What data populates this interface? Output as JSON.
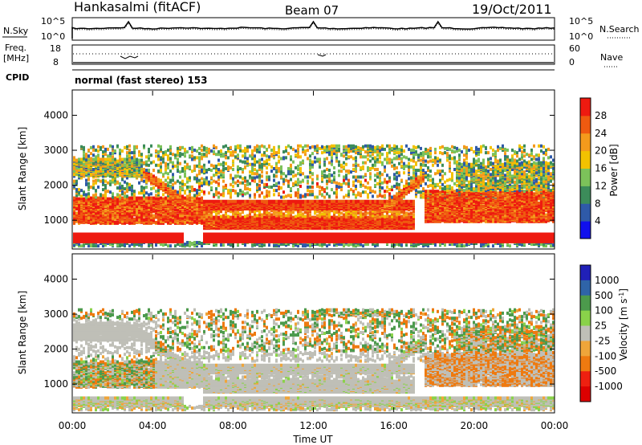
{
  "header": {
    "station": "Hankasalmi (fitACF)",
    "beam": "Beam 07",
    "date": "19/Oct/2011"
  },
  "noise_panel": {
    "left_label": "N.Sky",
    "right_label": "N.Search",
    "ticks": [
      "10^5",
      "10^0"
    ],
    "right_ticks": [
      "10^5",
      "10^0"
    ]
  },
  "freq_panel": {
    "left_label_1": "Freq.",
    "left_label_2": "[MHz]",
    "ticks": [
      "18",
      "8"
    ],
    "right_label": "Nave",
    "right_ticks": [
      "60",
      "0"
    ]
  },
  "cpid": {
    "label": "CPID",
    "value": "normal (fast stereo) 153"
  },
  "colors": {
    "power_scale": [
      "#1010ee",
      "#2f5aa8",
      "#3c8c5a",
      "#7cc25a",
      "#f2c200",
      "#f49a1c",
      "#ef5a10",
      "#ee1a10"
    ],
    "velocity_scale": [
      "#2020b8",
      "#2f64a8",
      "#4c9a4c",
      "#8ad24a",
      "#bfbfb7",
      "#efa53a",
      "#ee7a10",
      "#ee2010",
      "#dd0000"
    ]
  },
  "chart_data": [
    {
      "type": "heatmap",
      "panel": "power",
      "ylabel": "Slant Range [km]",
      "yticks": [
        "1000",
        "2000",
        "3000",
        "4000"
      ],
      "ylim": [
        200,
        4700
      ],
      "xlim": [
        0,
        24
      ],
      "colorbar": {
        "label": "Power [dB]",
        "ticks": [
          "4",
          "8",
          "12",
          "16",
          "20",
          "24",
          "28"
        ],
        "range": [
          0,
          32
        ]
      },
      "features": [
        {
          "name": "near-range E-layer band",
          "x": [
            0,
            24
          ],
          "y": [
            350,
            550
          ],
          "value": 30
        },
        {
          "name": "main F-region band",
          "x": [
            0,
            24
          ],
          "y": [
            900,
            1500
          ],
          "value": 27
        },
        {
          "name": "upper scatter",
          "x": [
            0,
            24
          ],
          "y": [
            2000,
            3100
          ],
          "value": 14
        }
      ]
    },
    {
      "type": "heatmap",
      "panel": "velocity",
      "ylabel": "Slant Range [km]",
      "xlabel": "Time UT",
      "xticks": [
        "00:00",
        "04:00",
        "08:00",
        "12:00",
        "16:00",
        "20:00",
        "00:00"
      ],
      "yticks": [
        "1000",
        "2000",
        "3000",
        "4000"
      ],
      "ylim": [
        200,
        4700
      ],
      "xlim": [
        0,
        24
      ],
      "colorbar": {
        "label": "Velocity [m s^-1]",
        "ticks": [
          "1000",
          "500",
          "100",
          "25",
          "-25",
          "-100",
          "-500",
          "-1000"
        ]
      },
      "features": [
        {
          "name": "ground scatter (near zero velocity)",
          "x": [
            5,
            16
          ],
          "y": [
            500,
            1900
          ],
          "value": 0
        },
        {
          "name": "negative velocity patches",
          "x": [
            17.5,
            22
          ],
          "y": [
            1000,
            1900
          ],
          "value": -300
        }
      ]
    }
  ]
}
